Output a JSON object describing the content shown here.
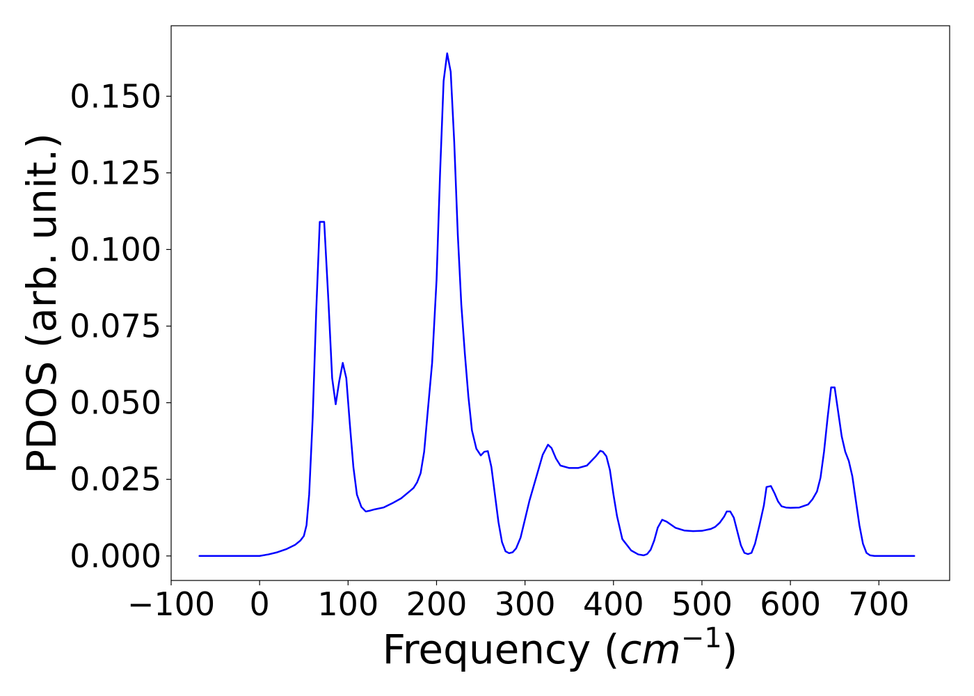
{
  "chart_data": {
    "type": "line",
    "title": "",
    "xlabel": {
      "prefix": "Frequency (",
      "unit_base": "cm",
      "unit_exp": "−1",
      "suffix": ")"
    },
    "ylabel": "PDOS (arb. unit.)",
    "xlim": [
      -100,
      780
    ],
    "ylim": [
      -0.008,
      0.173
    ],
    "x_ticks": [
      -100,
      0,
      100,
      200,
      300,
      400,
      500,
      600,
      700
    ],
    "x_tick_labels": [
      "−100",
      "0",
      "100",
      "200",
      "300",
      "400",
      "500",
      "600",
      "700"
    ],
    "y_ticks": [
      0.0,
      0.025,
      0.05,
      0.075,
      0.1,
      0.125,
      0.15
    ],
    "y_tick_labels": [
      "0.000",
      "0.025",
      "0.050",
      "0.075",
      "0.100",
      "0.125",
      "0.150"
    ],
    "grid": false,
    "legend": "none",
    "series": [
      {
        "color": "#0000ff",
        "x": [
          -68,
          -40,
          0,
          10,
          20,
          30,
          40,
          46,
          50,
          53,
          56,
          60,
          64,
          68,
          70,
          73,
          78,
          82,
          86,
          90,
          94,
          98,
          102,
          106,
          110,
          115,
          120,
          125,
          130,
          140,
          150,
          160,
          170,
          174,
          178,
          182,
          186,
          190,
          195,
          200,
          204,
          208,
          212,
          216,
          220,
          224,
          228,
          232,
          236,
          240,
          245,
          250,
          254,
          258,
          262,
          266,
          270,
          274,
          278,
          282,
          286,
          290,
          295,
          300,
          305,
          310,
          320,
          326,
          330,
          335,
          340,
          350,
          360,
          370,
          375,
          380,
          385,
          388,
          392,
          396,
          400,
          404,
          410,
          420,
          428,
          434,
          438,
          442,
          446,
          450,
          455,
          460,
          470,
          480,
          490,
          500,
          510,
          515,
          520,
          525,
          528,
          532,
          536,
          540,
          544,
          548,
          552,
          556,
          560,
          565,
          570,
          573,
          578,
          582,
          586,
          590,
          595,
          600,
          610,
          620,
          625,
          630,
          634,
          638,
          642,
          646,
          650,
          654,
          658,
          662,
          666,
          670,
          674,
          678,
          682,
          686,
          690,
          695,
          700,
          740
        ],
        "y": [
          0.0,
          0.0,
          0.0,
          0.0005,
          0.0012,
          0.0022,
          0.0036,
          0.005,
          0.0065,
          0.01,
          0.02,
          0.045,
          0.08,
          0.109,
          0.109,
          0.109,
          0.082,
          0.058,
          0.0495,
          0.057,
          0.063,
          0.058,
          0.043,
          0.029,
          0.02,
          0.016,
          0.0145,
          0.0148,
          0.0152,
          0.0158,
          0.0172,
          0.0188,
          0.0212,
          0.0222,
          0.024,
          0.027,
          0.034,
          0.047,
          0.063,
          0.09,
          0.125,
          0.155,
          0.164,
          0.158,
          0.135,
          0.105,
          0.082,
          0.066,
          0.052,
          0.041,
          0.035,
          0.0328,
          0.034,
          0.0342,
          0.029,
          0.02,
          0.011,
          0.0045,
          0.0015,
          0.0009,
          0.0012,
          0.0025,
          0.006,
          0.012,
          0.018,
          0.023,
          0.033,
          0.0363,
          0.0352,
          0.0318,
          0.0295,
          0.0287,
          0.0287,
          0.0295,
          0.031,
          0.0325,
          0.0343,
          0.034,
          0.0325,
          0.028,
          0.02,
          0.013,
          0.0055,
          0.0018,
          0.0005,
          0.0002,
          0.0006,
          0.002,
          0.005,
          0.0092,
          0.0118,
          0.0112,
          0.0092,
          0.0083,
          0.0081,
          0.0082,
          0.0088,
          0.0095,
          0.0108,
          0.0128,
          0.0145,
          0.0145,
          0.0125,
          0.008,
          0.0035,
          0.001,
          0.0006,
          0.001,
          0.004,
          0.01,
          0.0165,
          0.0225,
          0.0228,
          0.0205,
          0.0178,
          0.0162,
          0.0158,
          0.0157,
          0.0158,
          0.0168,
          0.0185,
          0.021,
          0.0255,
          0.034,
          0.045,
          0.055,
          0.055,
          0.047,
          0.039,
          0.034,
          0.031,
          0.026,
          0.018,
          0.01,
          0.004,
          0.001,
          0.0002,
          0.0,
          0.0,
          0.0
        ]
      }
    ]
  }
}
